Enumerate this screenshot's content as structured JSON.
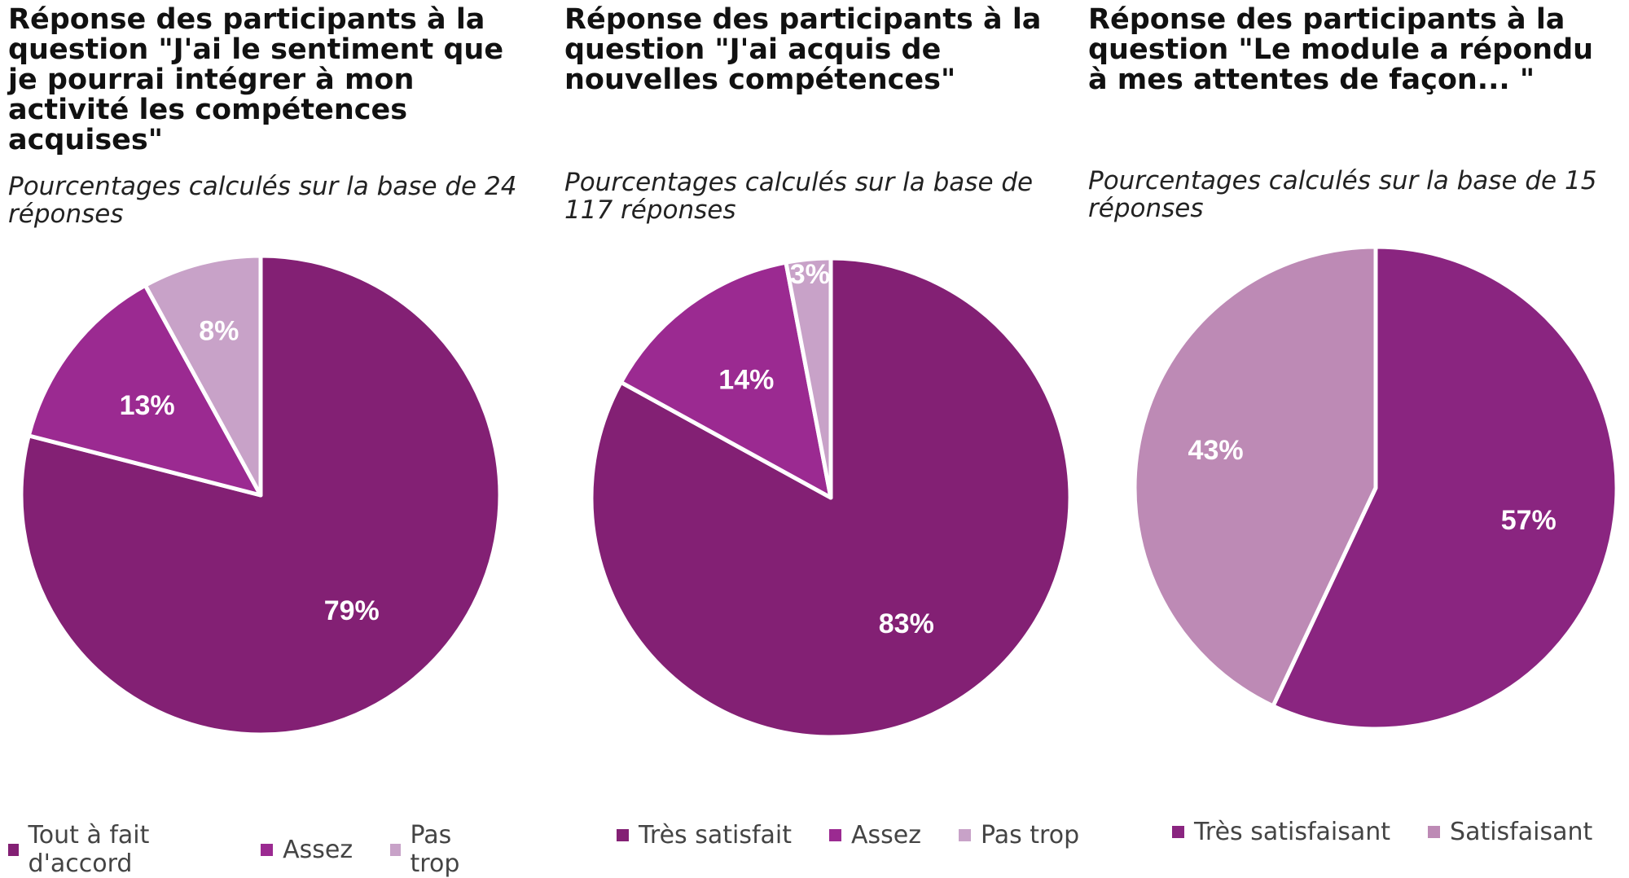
{
  "colors": {
    "dark_purple": "#832074",
    "magenta": "#9b2a91",
    "light_mauve": "#c8a2c8",
    "mauve": "#bd8ab5",
    "slice_border": "#ffffff",
    "label_text": "#ffffff"
  },
  "chart_data": [
    {
      "type": "pie",
      "title": "Réponse des participants à la question \"J'ai le sentiment que je pourrai intégrer à mon activité les compétences acquises\"",
      "subtitle": "Pourcentages calculés sur la base de 24 réponses",
      "categories": [
        "Tout à fait d'accord",
        "Assez",
        "Pas trop"
      ],
      "values": [
        79,
        13,
        8
      ],
      "labels": [
        "79%",
        "13%",
        "8%"
      ],
      "colors": [
        "#832074",
        "#9b2a91",
        "#c8a2c8"
      ],
      "start": "12 o'clock",
      "direction": "clockwise",
      "legend_position": "bottom"
    },
    {
      "type": "pie",
      "title": "Réponse des participants à la question \"J'ai acquis de nouvelles compétences\"",
      "subtitle": "Pourcentages calculés sur la base de 117 réponses",
      "categories": [
        "Très satisfait",
        "Assez",
        "Pas trop"
      ],
      "values": [
        83,
        14,
        3
      ],
      "labels": [
        "83%",
        "14%",
        "3%"
      ],
      "colors": [
        "#832074",
        "#9b2a91",
        "#c8a2c8"
      ],
      "start": "12 o'clock",
      "direction": "clockwise",
      "legend_position": "bottom"
    },
    {
      "type": "pie",
      "title": "Réponse des participants à la question \"Le module a répondu à mes attentes de façon... \"",
      "subtitle": "Pourcentages calculés sur la base de 15 réponses",
      "categories": [
        "Très satisfaisant",
        "Satisfaisant"
      ],
      "values": [
        57,
        43
      ],
      "labels": [
        "57%",
        "43%"
      ],
      "colors": [
        "#8a2580",
        "#bd8ab5"
      ],
      "start": "12 o'clock",
      "direction": "clockwise",
      "legend_position": "bottom"
    }
  ]
}
